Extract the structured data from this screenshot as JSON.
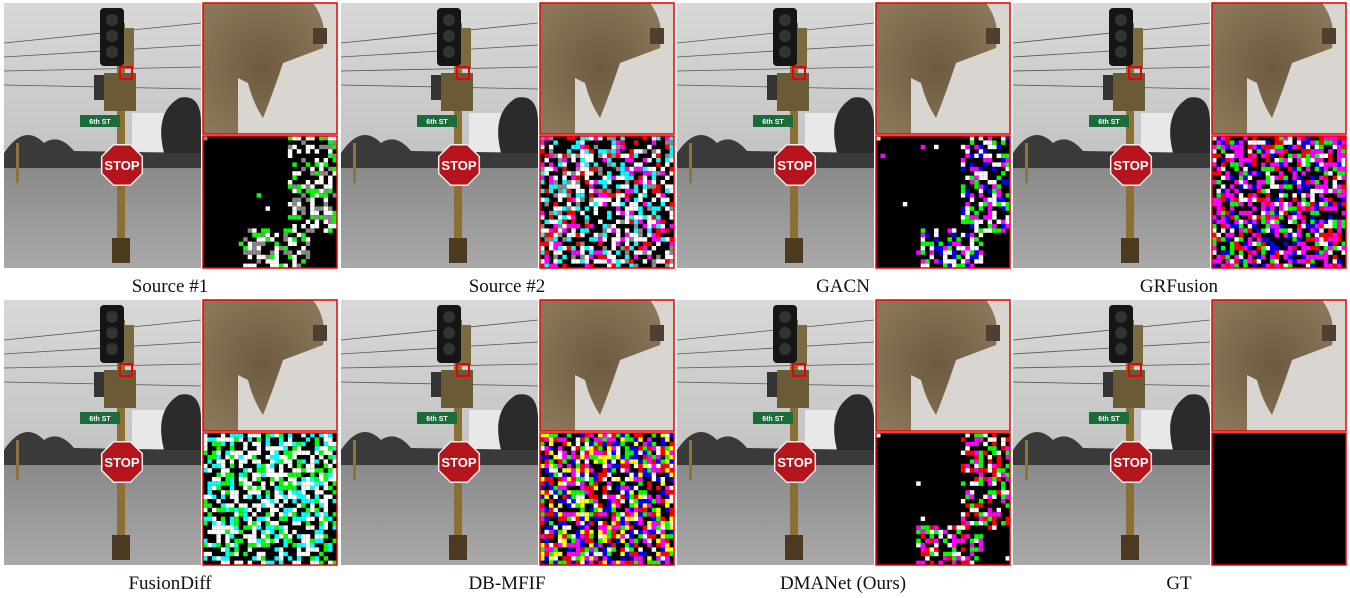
{
  "scene": {
    "sign": "STOP",
    "street": "6th ST"
  },
  "panels": [
    {
      "caption": "Source #1"
    },
    {
      "caption": "Source #2"
    },
    {
      "caption": "GACN"
    },
    {
      "caption": "GRFusion"
    },
    {
      "caption": "FusionDiff"
    },
    {
      "caption": "DB-MFIF"
    },
    {
      "caption": "DMANet (Ours)"
    },
    {
      "caption": "GT"
    }
  ]
}
